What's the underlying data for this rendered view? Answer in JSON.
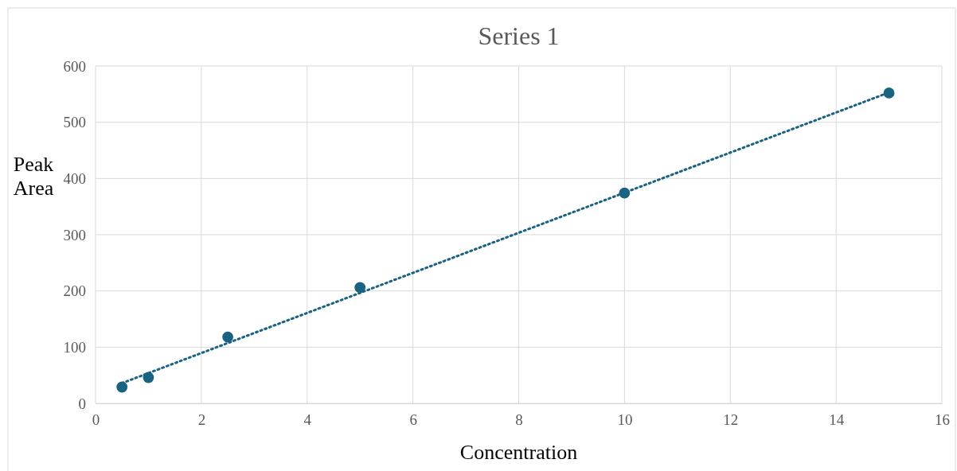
{
  "chart_data": {
    "type": "scatter",
    "title": "Series 1",
    "xlabel": "Concentration",
    "ylabel": "Peak Area",
    "xlim": [
      0,
      16
    ],
    "xticks": [
      0,
      2,
      4,
      6,
      8,
      10,
      12,
      14,
      16
    ],
    "ylim": [
      0,
      600
    ],
    "yticks": [
      0,
      100,
      200,
      300,
      400,
      500,
      600
    ],
    "grid": true,
    "series": [
      {
        "color": "#1a6282",
        "marker": "circle",
        "x": [
          0.5,
          1,
          2.5,
          5,
          10,
          15
        ],
        "values": [
          29,
          46,
          118,
          206,
          374,
          552
        ]
      },
      {
        "type": "line",
        "color": "#1a6282",
        "marker": "none",
        "line_style": "dotted",
        "x": [
          0.5,
          15
        ],
        "values": [
          36,
          553
        ]
      }
    ]
  }
}
